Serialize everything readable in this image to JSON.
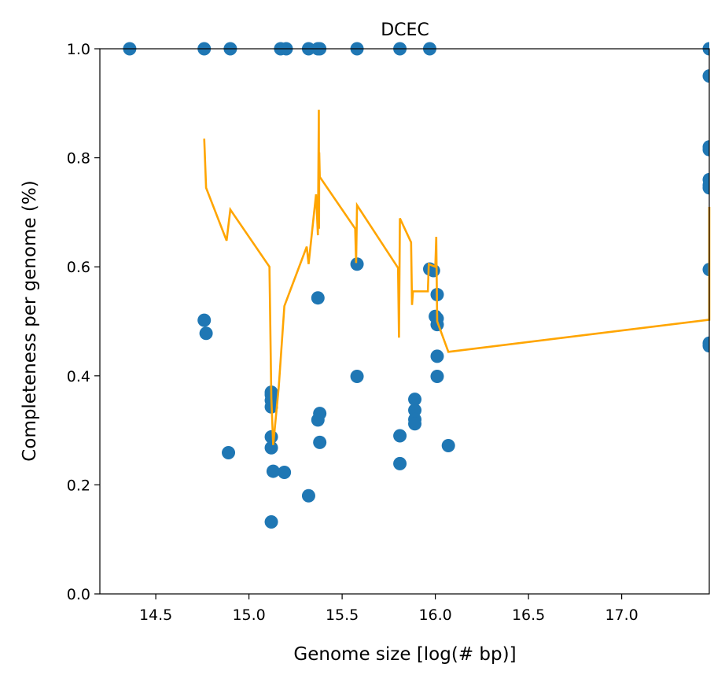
{
  "chart_data": {
    "type": "scatter",
    "title": "DCEC",
    "xlabel": "Genome size [log(# bp)]",
    "ylabel": "Completeness per genome (%)",
    "xlim": [
      14.2,
      17.47
    ],
    "ylim": [
      0.0,
      1.0
    ],
    "xticks": [
      14.5,
      15.0,
      15.5,
      16.0,
      16.5,
      17.0
    ],
    "xtick_labels": [
      "14.5",
      "15.0",
      "15.5",
      "16.0",
      "16.5",
      "17.0"
    ],
    "yticks": [
      0.0,
      0.2,
      0.4,
      0.6,
      0.8,
      1.0
    ],
    "ytick_labels": [
      "0.0",
      "0.2",
      "0.4",
      "0.6",
      "0.8",
      "1.0"
    ],
    "grid": false,
    "legend": "none",
    "colors": {
      "points": "#1f77b4",
      "line": "#ffa500"
    },
    "series": [
      {
        "kind": "scatter",
        "points": [
          [
            14.36,
            1.0
          ],
          [
            14.76,
            1.0
          ],
          [
            14.9,
            1.0
          ],
          [
            15.17,
            1.0
          ],
          [
            15.2,
            1.0
          ],
          [
            15.32,
            1.0
          ],
          [
            15.37,
            1.0
          ],
          [
            15.38,
            1.0
          ],
          [
            15.58,
            1.0
          ],
          [
            15.81,
            1.0
          ],
          [
            15.97,
            1.0
          ],
          [
            17.47,
            1.0
          ],
          [
            17.47,
            0.95
          ],
          [
            17.47,
            0.82
          ],
          [
            17.47,
            0.815
          ],
          [
            17.47,
            0.76
          ],
          [
            17.47,
            0.75
          ],
          [
            17.47,
            0.745
          ],
          [
            17.47,
            0.595
          ],
          [
            17.47,
            0.46
          ],
          [
            17.47,
            0.455
          ],
          [
            14.76,
            0.502
          ],
          [
            14.77,
            0.478
          ],
          [
            14.89,
            0.259
          ],
          [
            15.12,
            0.37
          ],
          [
            15.12,
            0.365
          ],
          [
            15.12,
            0.355
          ],
          [
            15.12,
            0.343
          ],
          [
            15.12,
            0.288
          ],
          [
            15.12,
            0.268
          ],
          [
            15.13,
            0.225
          ],
          [
            15.12,
            0.132
          ],
          [
            15.19,
            0.223
          ],
          [
            15.32,
            0.18
          ],
          [
            15.37,
            0.543
          ],
          [
            15.38,
            0.331
          ],
          [
            15.37,
            0.319
          ],
          [
            15.38,
            0.278
          ],
          [
            15.58,
            0.605
          ],
          [
            15.58,
            0.399
          ],
          [
            15.81,
            0.29
          ],
          [
            15.81,
            0.239
          ],
          [
            15.89,
            0.357
          ],
          [
            15.89,
            0.337
          ],
          [
            15.89,
            0.32
          ],
          [
            15.89,
            0.312
          ],
          [
            15.97,
            0.596
          ],
          [
            15.99,
            0.593
          ],
          [
            16.01,
            0.549
          ],
          [
            16.0,
            0.509
          ],
          [
            16.01,
            0.505
          ],
          [
            16.01,
            0.494
          ],
          [
            16.01,
            0.436
          ],
          [
            16.01,
            0.399
          ],
          [
            16.07,
            0.272
          ]
        ]
      },
      {
        "kind": "line",
        "points": [
          [
            14.76,
            0.835
          ],
          [
            14.77,
            0.745
          ],
          [
            14.88,
            0.648
          ],
          [
            14.9,
            0.705
          ],
          [
            15.11,
            0.6
          ],
          [
            15.12,
            0.36
          ],
          [
            15.13,
            0.273
          ],
          [
            15.16,
            0.38
          ],
          [
            15.19,
            0.528
          ],
          [
            15.31,
            0.637
          ],
          [
            15.32,
            0.605
          ],
          [
            15.36,
            0.733
          ],
          [
            15.37,
            0.658
          ],
          [
            15.375,
            0.888
          ],
          [
            15.376,
            0.67
          ],
          [
            15.377,
            0.81
          ],
          [
            15.38,
            0.765
          ],
          [
            15.57,
            0.67
          ],
          [
            15.575,
            0.607
          ],
          [
            15.58,
            0.713
          ],
          [
            15.8,
            0.598
          ],
          [
            15.805,
            0.47
          ],
          [
            15.81,
            0.689
          ],
          [
            15.87,
            0.645
          ],
          [
            15.875,
            0.53
          ],
          [
            15.88,
            0.555
          ],
          [
            15.96,
            0.555
          ],
          [
            15.965,
            0.605
          ],
          [
            16.0,
            0.6
          ],
          [
            16.005,
            0.655
          ],
          [
            16.01,
            0.5
          ],
          [
            16.07,
            0.444
          ],
          [
            17.47,
            0.503
          ],
          [
            17.47,
            0.71
          ]
        ]
      }
    ]
  }
}
